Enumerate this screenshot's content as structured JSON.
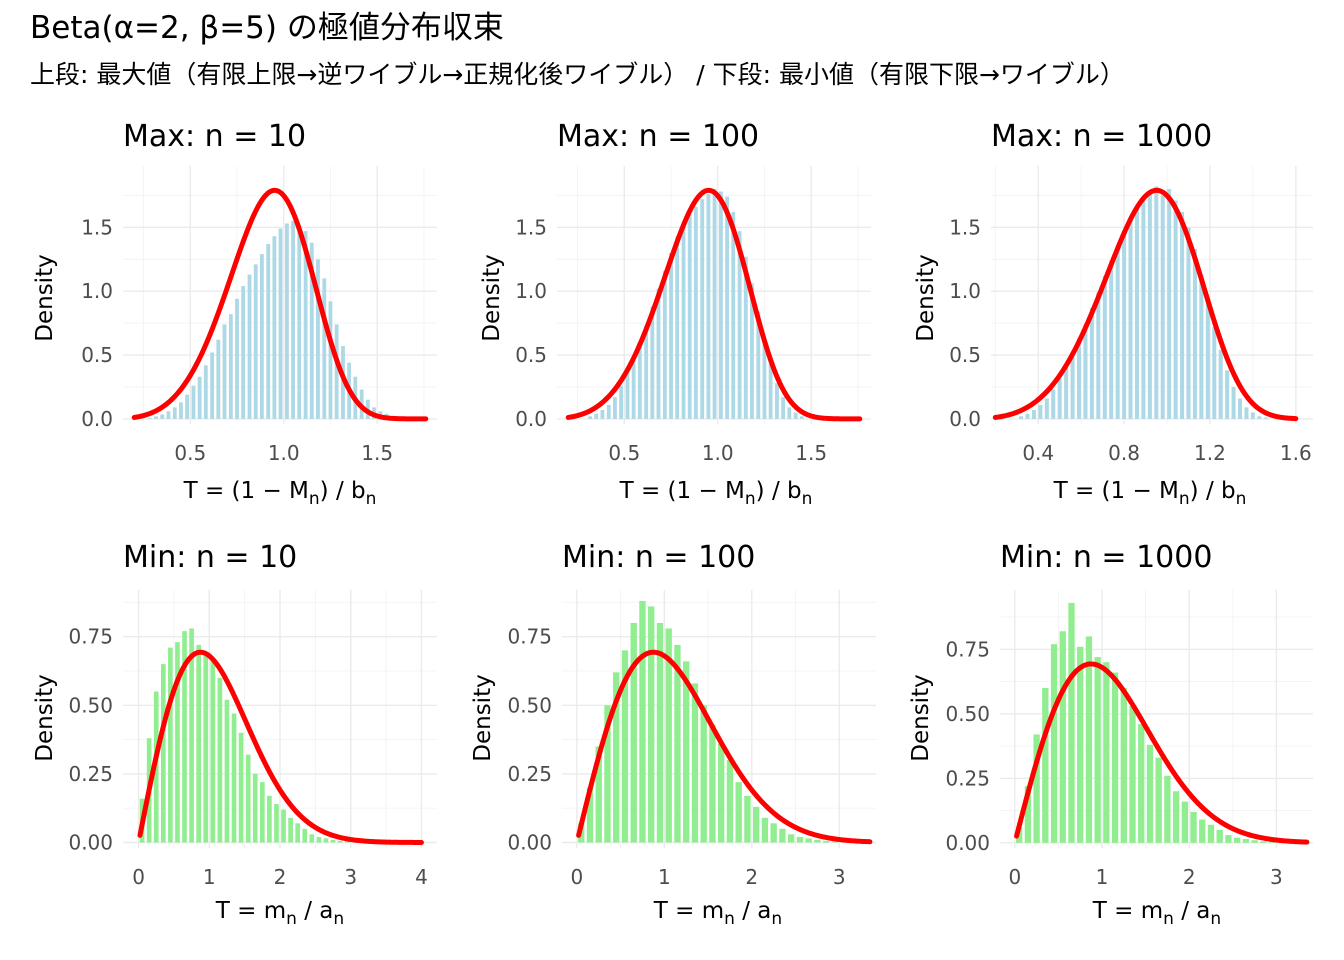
{
  "title": "Beta(α=2, β=5) の極値分布収束",
  "subtitle": "上段: 最大値（有限上限→逆ワイブル→正規化後ワイブル） / 下段: 最小値（有限下限→ワイブル）",
  "colors": {
    "max_bars": "#add8e6",
    "min_bars": "#90ee90",
    "density_curve": "#ff0000"
  },
  "chart_data": [
    {
      "type": "bar",
      "title": "Max: n = 10",
      "xlabel": "T = (1 − M_n) / b_n",
      "ylabel": "Density",
      "xlim": [
        0.14,
        1.82
      ],
      "ylim": [
        -0.04,
        1.98
      ],
      "xticks": [
        0.5,
        1.0,
        1.5
      ],
      "xtick_labels": [
        "0.5",
        "1.0",
        "1.5"
      ],
      "yticks": [
        0.0,
        0.5,
        1.0,
        1.5
      ],
      "ytick_labels": [
        "0.0",
        "0.5",
        "1.0",
        "1.5"
      ],
      "bin_width": 0.0333,
      "x": [
        0.25,
        0.283,
        0.317,
        0.35,
        0.383,
        0.417,
        0.45,
        0.483,
        0.517,
        0.55,
        0.583,
        0.617,
        0.65,
        0.683,
        0.717,
        0.75,
        0.783,
        0.817,
        0.85,
        0.883,
        0.917,
        0.95,
        0.983,
        1.017,
        1.05,
        1.083,
        1.117,
        1.15,
        1.183,
        1.217,
        1.25,
        1.283,
        1.317,
        1.35,
        1.383,
        1.417,
        1.45,
        1.483,
        1.517,
        1.55,
        1.583,
        1.617,
        1.65
      ],
      "values": [
        0.003,
        0.008,
        0.02,
        0.035,
        0.06,
        0.09,
        0.13,
        0.19,
        0.26,
        0.33,
        0.42,
        0.52,
        0.62,
        0.74,
        0.82,
        0.94,
        1.04,
        1.13,
        1.21,
        1.29,
        1.37,
        1.43,
        1.49,
        1.53,
        1.55,
        1.52,
        1.47,
        1.38,
        1.25,
        1.1,
        0.92,
        0.74,
        0.57,
        0.44,
        0.33,
        0.23,
        0.15,
        0.09,
        0.06,
        0.04,
        0.02,
        0.012,
        0.006
      ],
      "series": [
        {
          "name": "",
          "type": "line",
          "color": "#ff0000",
          "distribution": "Weibull(k=4.75, λ=1)"
        }
      ]
    },
    {
      "type": "bar",
      "title": "Max: n = 100",
      "xlabel": "T = (1 − M_n) / b_n",
      "ylabel": "Density",
      "xlim": [
        0.14,
        1.82
      ],
      "ylim": [
        -0.04,
        1.98
      ],
      "xticks": [
        0.5,
        1.0,
        1.5
      ],
      "xtick_labels": [
        "0.5",
        "1.0",
        "1.5"
      ],
      "yticks": [
        0.0,
        0.5,
        1.0,
        1.5
      ],
      "ytick_labels": [
        "0.0",
        "0.5",
        "1.0",
        "1.5"
      ],
      "bin_width": 0.0333,
      "x": [
        0.317,
        0.35,
        0.383,
        0.417,
        0.45,
        0.483,
        0.517,
        0.55,
        0.583,
        0.617,
        0.65,
        0.683,
        0.717,
        0.75,
        0.783,
        0.817,
        0.85,
        0.883,
        0.917,
        0.95,
        0.983,
        1.017,
        1.05,
        1.083,
        1.117,
        1.15,
        1.183,
        1.217,
        1.25,
        1.283,
        1.317,
        1.35,
        1.383,
        1.417,
        1.45
      ],
      "values": [
        0.02,
        0.04,
        0.07,
        0.11,
        0.17,
        0.26,
        0.36,
        0.47,
        0.6,
        0.73,
        0.88,
        1.02,
        1.16,
        1.3,
        1.43,
        1.53,
        1.6,
        1.66,
        1.72,
        1.76,
        1.8,
        1.78,
        1.74,
        1.62,
        1.47,
        1.27,
        1.06,
        0.84,
        0.62,
        0.44,
        0.28,
        0.17,
        0.09,
        0.05,
        0.02
      ],
      "series": [
        {
          "name": "",
          "type": "line",
          "color": "#ff0000",
          "distribution": "Weibull(k=4.75, λ=1)"
        }
      ]
    },
    {
      "type": "bar",
      "title": "Max: n = 1000",
      "xlabel": "T = (1 − M_n) / b_n",
      "ylabel": "Density",
      "xlim": [
        0.18,
        1.68
      ],
      "ylim": [
        -0.04,
        1.98
      ],
      "xticks": [
        0.4,
        0.8,
        1.2,
        1.6
      ],
      "xtick_labels": [
        "0.4",
        "0.8",
        "1.2",
        "1.6"
      ],
      "yticks": [
        0.0,
        0.5,
        1.0,
        1.5
      ],
      "ytick_labels": [
        "0.0",
        "0.5",
        "1.0",
        "1.5"
      ],
      "bin_width": 0.03,
      "x": [
        0.32,
        0.35,
        0.38,
        0.41,
        0.44,
        0.47,
        0.5,
        0.53,
        0.56,
        0.59,
        0.62,
        0.65,
        0.68,
        0.71,
        0.74,
        0.77,
        0.8,
        0.83,
        0.86,
        0.89,
        0.92,
        0.95,
        0.98,
        1.01,
        1.04,
        1.07,
        1.1,
        1.13,
        1.16,
        1.19,
        1.22,
        1.25,
        1.28,
        1.31,
        1.34,
        1.37,
        1.4,
        1.43,
        1.46
      ],
      "values": [
        0.02,
        0.04,
        0.07,
        0.11,
        0.16,
        0.23,
        0.31,
        0.4,
        0.51,
        0.63,
        0.74,
        0.87,
        0.99,
        1.12,
        1.24,
        1.36,
        1.47,
        1.56,
        1.65,
        1.71,
        1.77,
        1.82,
        1.75,
        1.8,
        1.71,
        1.62,
        1.5,
        1.33,
        1.13,
        0.93,
        0.72,
        0.54,
        0.38,
        0.25,
        0.16,
        0.09,
        0.05,
        0.02,
        0.01
      ],
      "series": [
        {
          "name": "",
          "type": "line",
          "color": "#ff0000",
          "distribution": "Weibull(k=4.75, λ=1)"
        }
      ]
    },
    {
      "type": "bar",
      "title": "Min: n = 10",
      "xlabel": "T = m_n / a_n",
      "ylabel": "Density",
      "xlim": [
        -0.22,
        4.22
      ],
      "ylim": [
        -0.02,
        0.92
      ],
      "xticks": [
        0,
        1,
        2,
        3,
        4
      ],
      "xtick_labels": [
        "0",
        "1",
        "2",
        "3",
        "4"
      ],
      "yticks": [
        0.0,
        0.25,
        0.5,
        0.75
      ],
      "ytick_labels": [
        "0.00",
        "0.25",
        "0.50",
        "0.75"
      ],
      "bin_width": 0.1,
      "x": [
        0.05,
        0.15,
        0.25,
        0.35,
        0.45,
        0.55,
        0.65,
        0.75,
        0.85,
        0.95,
        1.05,
        1.15,
        1.25,
        1.35,
        1.45,
        1.55,
        1.65,
        1.75,
        1.85,
        1.95,
        2.05,
        2.15,
        2.25,
        2.35,
        2.45,
        2.55,
        2.65,
        2.75,
        2.85,
        2.95
      ],
      "values": [
        0.16,
        0.38,
        0.55,
        0.65,
        0.71,
        0.73,
        0.77,
        0.78,
        0.72,
        0.68,
        0.66,
        0.6,
        0.52,
        0.47,
        0.4,
        0.32,
        0.25,
        0.22,
        0.17,
        0.14,
        0.12,
        0.09,
        0.07,
        0.05,
        0.03,
        0.02,
        0.015,
        0.01,
        0.006,
        0.004
      ],
      "series": [
        {
          "name": "",
          "type": "line",
          "color": "#ff0000",
          "distribution": "Weibull(k=2, λ=1.237)"
        }
      ]
    },
    {
      "type": "bar",
      "title": "Min: n = 100",
      "xlabel": "T = m_n / a_n",
      "ylabel": "Density",
      "xlim": [
        -0.17,
        3.42
      ],
      "ylim": [
        -0.02,
        0.92
      ],
      "xticks": [
        0,
        1,
        2,
        3
      ],
      "xtick_labels": [
        "0",
        "1",
        "2",
        "3"
      ],
      "yticks": [
        0.0,
        0.25,
        0.5,
        0.75
      ],
      "ytick_labels": [
        "0.00",
        "0.25",
        "0.50",
        "0.75"
      ],
      "bin_width": 0.1,
      "x": [
        0.05,
        0.15,
        0.25,
        0.35,
        0.45,
        0.55,
        0.65,
        0.75,
        0.85,
        0.95,
        1.05,
        1.15,
        1.25,
        1.35,
        1.45,
        1.55,
        1.65,
        1.75,
        1.85,
        1.95,
        2.05,
        2.15,
        2.25,
        2.35,
        2.45,
        2.55,
        2.65,
        2.75,
        2.85,
        2.95
      ],
      "values": [
        0.07,
        0.2,
        0.35,
        0.5,
        0.62,
        0.7,
        0.8,
        0.88,
        0.86,
        0.8,
        0.78,
        0.72,
        0.66,
        0.58,
        0.5,
        0.43,
        0.36,
        0.3,
        0.22,
        0.17,
        0.13,
        0.09,
        0.07,
        0.05,
        0.03,
        0.02,
        0.015,
        0.01,
        0.006,
        0.004
      ],
      "series": [
        {
          "name": "",
          "type": "line",
          "color": "#ff0000",
          "distribution": "Weibull(k=2, λ=1.237)"
        }
      ]
    },
    {
      "type": "bar",
      "title": "Min: n = 1000",
      "xlabel": "T = m_n / a_n",
      "ylabel": "Density",
      "xlim": [
        -0.17,
        3.42
      ],
      "ylim": [
        -0.02,
        0.98
      ],
      "xticks": [
        0,
        1,
        2,
        3
      ],
      "xtick_labels": [
        "0",
        "1",
        "2",
        "3"
      ],
      "yticks": [
        0.0,
        0.25,
        0.5,
        0.75
      ],
      "ytick_labels": [
        "0.00",
        "0.25",
        "0.50",
        "0.75"
      ],
      "bin_width": 0.1,
      "x": [
        0.05,
        0.15,
        0.25,
        0.35,
        0.45,
        0.55,
        0.65,
        0.75,
        0.85,
        0.95,
        1.05,
        1.15,
        1.25,
        1.35,
        1.45,
        1.55,
        1.65,
        1.75,
        1.85,
        1.95,
        2.05,
        2.15,
        2.25,
        2.35,
        2.45,
        2.55,
        2.65,
        2.75,
        2.85,
        2.95
      ],
      "values": [
        0.06,
        0.22,
        0.42,
        0.6,
        0.77,
        0.82,
        0.93,
        0.76,
        0.8,
        0.72,
        0.7,
        0.66,
        0.6,
        0.53,
        0.46,
        0.38,
        0.33,
        0.26,
        0.2,
        0.16,
        0.12,
        0.09,
        0.07,
        0.05,
        0.03,
        0.02,
        0.015,
        0.01,
        0.006,
        0.004
      ],
      "series": [
        {
          "name": "",
          "type": "line",
          "color": "#ff0000",
          "distribution": "Weibull(k=2, λ=1.237)"
        }
      ]
    }
  ]
}
